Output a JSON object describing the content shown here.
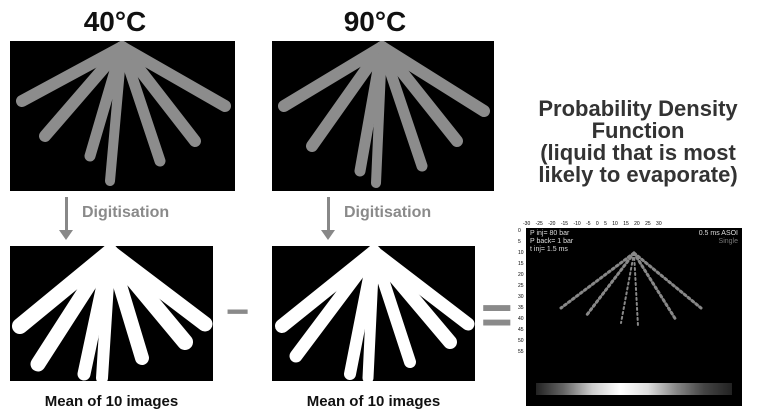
{
  "left": {
    "temperature": "40°C",
    "process_label": "Digitisation",
    "caption": "Mean of 10 images"
  },
  "middle": {
    "temperature": "90°C",
    "process_label": "Digitisation",
    "caption": "Mean of 10 images"
  },
  "operators": {
    "minus": "−",
    "equals": "="
  },
  "pdf": {
    "title_lines": [
      "Probability Density",
      "Function",
      "(liquid that is most",
      "likely to evaporate)"
    ],
    "top_ticks": "-30 -25 -20 -15 -10 -5 0 5 10 15 20 25 30",
    "left_ticks": [
      "0",
      "5",
      "10",
      "15",
      "20",
      "25",
      "30",
      "35",
      "40",
      "45",
      "50",
      "55"
    ],
    "info_left": [
      "P inj= 80 bar",
      "P back= 1 bar",
      "t inj= 1.5 ms"
    ],
    "info_right": [
      "0.5 ms ASOI",
      "Single"
    ]
  },
  "colors": {
    "label_gray": "#8a8a8a",
    "panel_bg": "#000000"
  }
}
